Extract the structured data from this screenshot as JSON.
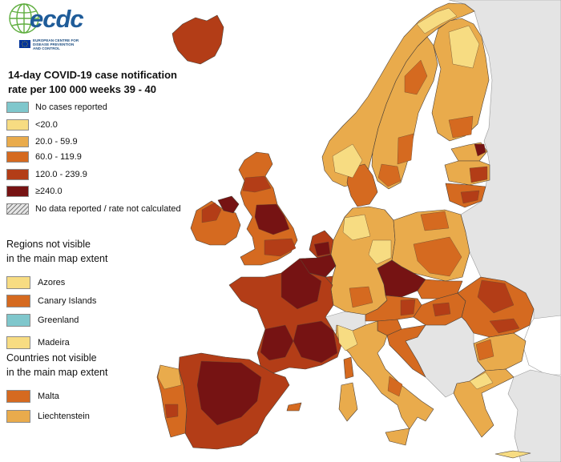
{
  "logo": {
    "wordmark": "ecdc",
    "wordmark_color": "#1f5c99",
    "globe_color": "#5fae3f",
    "globe_icon": "globe-icon",
    "flag_icon": "eu-flag-icon",
    "org_lines": [
      "EUROPEAN CENTRE FOR",
      "DISEASE PREVENTION",
      "AND CONTROL"
    ]
  },
  "title": {
    "line1": "14-day COVID-19 case notification",
    "line2": "rate per 100 000 weeks 39 - 40"
  },
  "legend": {
    "items": [
      {
        "label": "No cases reported",
        "color": "#7fc7cc"
      },
      {
        "label": "<20.0",
        "color": "#f7dc82"
      },
      {
        "label": "20.0 - 59.9",
        "color": "#e9ab4c"
      },
      {
        "label": "60.0 - 119.9",
        "color": "#d56a20"
      },
      {
        "label": "120.0 - 239.9",
        "color": "#b33d17"
      },
      {
        "label": "≥240.0",
        "color": "#761313"
      },
      {
        "label": "No data reported / rate not calculated",
        "color": "#bdbdbd",
        "swatch_icon": "hatched-swatch"
      }
    ]
  },
  "regions_not_visible": {
    "heading_line1": "Regions not visible",
    "heading_line2": "in the main map extent",
    "items": [
      {
        "label": "Azores",
        "category": 1
      },
      {
        "label": "Canary Islands",
        "category": 3
      },
      {
        "label": "Greenland",
        "category": 0
      },
      {
        "label": "Madeira",
        "category": 1
      }
    ]
  },
  "countries_not_visible": {
    "heading_line1": "Countries not visible",
    "heading_line2": "in the main map extent",
    "items": [
      {
        "label": "Malta",
        "category": 3
      },
      {
        "label": "Liechtenstein",
        "category": 2
      }
    ]
  },
  "map": {
    "land_color": "#e4e4e4",
    "region_categories": {
      "iceland": 4,
      "norway": 2,
      "norway-north": 1,
      "norway-south": 1,
      "sweden": 2,
      "sweden-stockholm": 3,
      "sweden-south": 3,
      "sweden-north": 3,
      "finland": 2,
      "finland-north": 1,
      "finland-south": 3,
      "estonia": 2,
      "estonia-east": 5,
      "latvia": 2,
      "latvia-east": 4,
      "lithuania": 3,
      "lithuania-vilnius": 4,
      "denmark": 3,
      "ireland": 3,
      "ireland-north": 4,
      "uk": 3,
      "uk-northern-ireland": 5,
      "uk-north-england": 5,
      "uk-scotland-belt": 4,
      "uk-south": 4,
      "netherlands": 4,
      "netherlands-south": 5,
      "belgium": 5,
      "luxembourg": 4,
      "germany": 2,
      "germany-north": 1,
      "germany-east": 1,
      "germany-south": 3,
      "poland": 2,
      "poland-south": 3,
      "poland-north": 3,
      "czechia": 5,
      "slovakia": 3,
      "austria": 3,
      "austria-east": 4,
      "hungary": 3,
      "hungary-budapest": 4,
      "romania": 3,
      "romania-center": 4,
      "romania-south": 4,
      "slovenia": 3,
      "croatia": 3,
      "bulgaria": 2,
      "bulgaria-west": 3,
      "greece": 2,
      "greece-north": 1,
      "crete": 1,
      "italy": 2,
      "italy-north-west": 1,
      "italy-campania": 3,
      "sicily": 2,
      "sardinia": 2,
      "corsica": 3,
      "france": 4,
      "france-north": 5,
      "france-south-east": 5,
      "france-south-west": 5,
      "spain": 4,
      "spain-center": 5,
      "balearic": 3,
      "portugal": 3,
      "portugal-north": 2,
      "portugal-lisbon": 4
    }
  }
}
